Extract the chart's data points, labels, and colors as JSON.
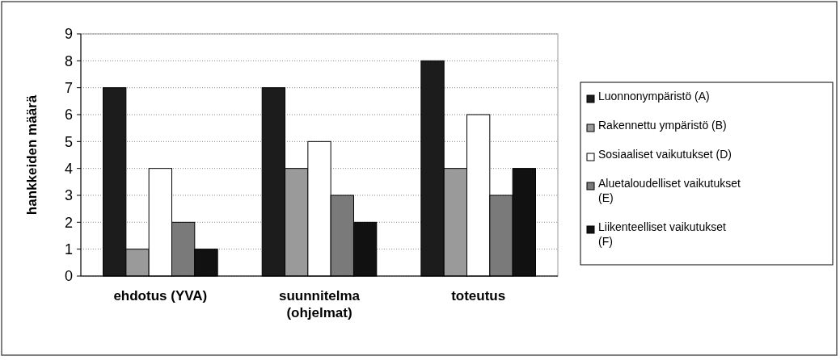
{
  "chart_data": {
    "type": "bar",
    "ylabel": "hankkeiden määrä",
    "categories": [
      "ehdotus (YVA)",
      "suunnitelma (ohjelmat)",
      "toteutus"
    ],
    "series": [
      {
        "name": "Luonnonympäristö (A)",
        "color": "#1c1c1c",
        "values": [
          7,
          7,
          8
        ]
      },
      {
        "name": "Rakennettu ympäristö (B)",
        "color": "#9a9a9a",
        "values": [
          1,
          4,
          4
        ]
      },
      {
        "name": "Sosiaaliset vaikutukset (D)",
        "color": "#ffffff",
        "values": [
          4,
          5,
          6
        ]
      },
      {
        "name": "Aluetaloudelliset vaikutukset (E)",
        "color": "#7a7a7a",
        "values": [
          2,
          3,
          3
        ]
      },
      {
        "name": "Liikenteelliset vaikutukset (F)",
        "color": "#111111",
        "values": [
          1,
          2,
          4
        ]
      }
    ],
    "ylim": [
      0,
      9
    ],
    "yticks": [
      0,
      1,
      2,
      3,
      4,
      5,
      6,
      7,
      8,
      9
    ],
    "grid": "y",
    "legend": "right"
  }
}
